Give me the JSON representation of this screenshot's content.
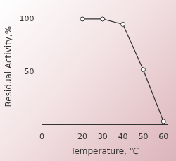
{
  "chart_data": {
    "type": "line",
    "xlabel": "Temperature, ℃",
    "ylabel": "Residual Activity,%",
    "x": [
      20,
      30,
      40,
      50,
      60
    ],
    "values": [
      100,
      100,
      95,
      52,
      3
    ],
    "color": "#333333",
    "marker": "circle",
    "xlim": [
      0,
      62
    ],
    "xticks": [
      0,
      20,
      30,
      40,
      50,
      60
    ],
    "ylim": [
      0,
      110
    ],
    "yticks": [
      50,
      100
    ],
    "grid": false
  }
}
